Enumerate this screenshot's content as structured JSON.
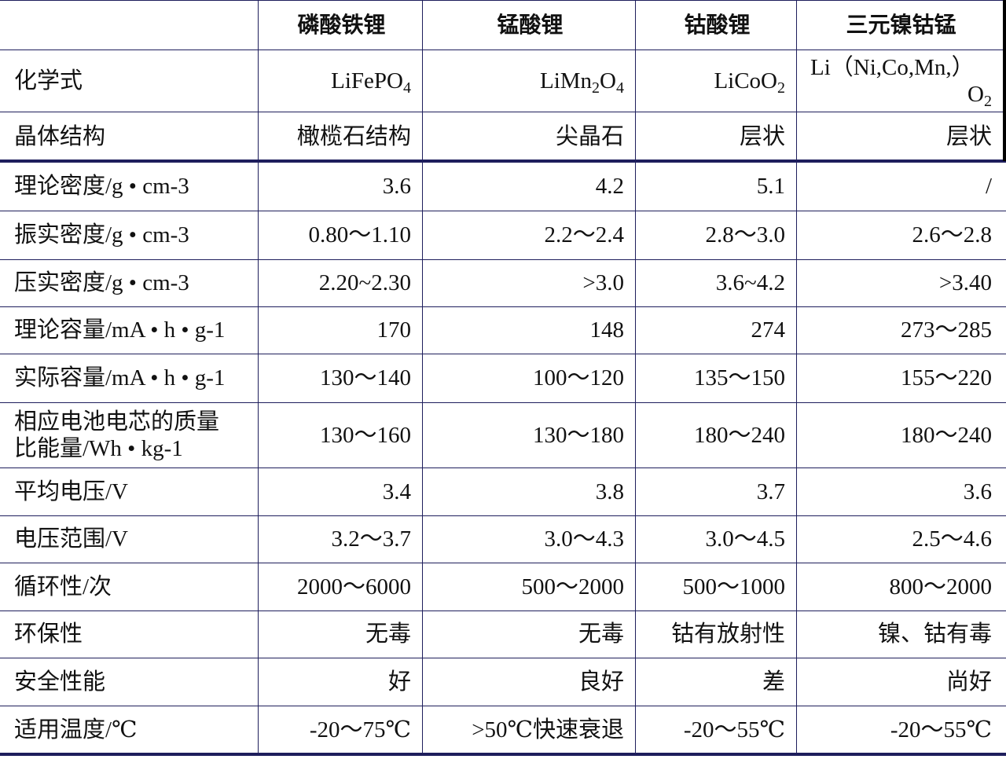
{
  "table": {
    "header": [
      "磷酸铁锂",
      "锰酸锂",
      "钴酸锂",
      "三元镍钴锰"
    ],
    "formula_row": {
      "label": "化学式",
      "cells": [
        [
          [
            {
              "t": "LiFePO"
            },
            {
              "t": "4",
              "sub": true
            }
          ]
        ],
        [
          [
            {
              "t": "LiMn"
            },
            {
              "t": "2",
              "sub": true
            },
            {
              "t": "O"
            },
            {
              "t": "4",
              "sub": true
            }
          ]
        ],
        [
          [
            {
              "t": "LiCoO"
            },
            {
              "t": "2",
              "sub": true
            }
          ]
        ],
        [
          [
            {
              "t": "Li（Ni,Co,Mn,）"
            }
          ],
          [
            {
              "t": "O"
            },
            {
              "t": "2",
              "sub": true
            }
          ]
        ]
      ]
    },
    "rows": [
      {
        "label": [
          "晶体结构"
        ],
        "cells": [
          "橄榄石结构",
          "尖晶石",
          "层状",
          "层状"
        ]
      },
      {
        "label": [
          "理论密度/g • cm-3"
        ],
        "cells": [
          "3.6",
          "4.2",
          "5.1",
          "/"
        ]
      },
      {
        "label": [
          "振实密度/g • cm-3"
        ],
        "cells": [
          "0.80～1.10",
          "2.2～2.4",
          "2.8～3.0",
          "2.6～2.8"
        ]
      },
      {
        "label": [
          "压实密度/g • cm-3"
        ],
        "cells": [
          "2.20~2.30",
          ">3.0",
          "3.6~4.2",
          ">3.40"
        ]
      },
      {
        "label": [
          "理论容量/mA • h • g-1"
        ],
        "cells": [
          "170",
          "148",
          "274",
          "273～285"
        ]
      },
      {
        "label": [
          "实际容量/mA • h • g-1"
        ],
        "cells": [
          "130～140",
          "100～120",
          "135～150",
          "155～220"
        ]
      },
      {
        "label": [
          "相应电池电芯的质量",
          "比能量/Wh • kg-1"
        ],
        "cells": [
          "130～160",
          "130～180",
          "180～240",
          "180～240"
        ]
      },
      {
        "label": [
          "平均电压/V"
        ],
        "cells": [
          "3.4",
          "3.8",
          "3.7",
          "3.6"
        ]
      },
      {
        "label": [
          "电压范围/V"
        ],
        "cells": [
          "3.2～3.7",
          "3.0～4.3",
          "3.0～4.5",
          "2.5～4.6"
        ]
      },
      {
        "label": [
          "循环性/次"
        ],
        "cells": [
          "2000～6000",
          "500～2000",
          "500～1000",
          "800～2000"
        ]
      },
      {
        "label": [
          "环保性"
        ],
        "cells": [
          "无毒",
          "无毒",
          "钴有放射性",
          "镍、钴有毒"
        ]
      },
      {
        "label": [
          "安全性能"
        ],
        "cells": [
          "好",
          "良好",
          "差",
          "尚好"
        ]
      },
      {
        "label": [
          "适用温度/℃"
        ],
        "cells": [
          "-20～75℃",
          ">50℃快速衰退",
          "-20～55℃",
          "-20～55℃"
        ]
      }
    ]
  }
}
